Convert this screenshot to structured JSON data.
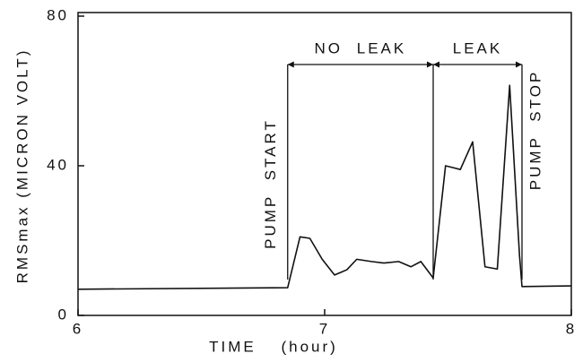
{
  "chart_data": {
    "type": "line",
    "xlabel": "TIME (hour)",
    "ylabel": "RMSmax (MICRON VOLT)",
    "x": [
      6,
      6.85,
      6.9,
      6.94,
      6.99,
      7.04,
      7.09,
      7.13,
      7.19,
      7.24,
      7.3,
      7.35,
      7.39,
      7.44,
      7.49,
      7.55,
      7.6,
      7.65,
      7.7,
      7.75,
      7.79,
      7.8,
      8
    ],
    "series": [
      {
        "color": "#111111",
        "values": [
          7,
          7.4,
          21,
          20.6,
          15,
          10.8,
          12.2,
          15,
          14.4,
          14,
          14.4,
          13,
          14.4,
          10,
          40,
          39,
          46.4,
          13,
          12.4,
          61.5,
          16,
          7.7,
          7.9
        ]
      }
    ],
    "xlim": [
      6,
      8
    ],
    "xticks": [
      6,
      7,
      8
    ],
    "ylim": [
      0,
      80
    ],
    "yticks": [
      0,
      40,
      80
    ],
    "events": [
      {
        "text": "PUMP START",
        "x": 6.85
      },
      {
        "text": "PUMP STOP",
        "x": 7.8
      }
    ],
    "spans": [
      {
        "text": "NO LEAK",
        "from": 6.85,
        "to": 7.44
      },
      {
        "text": "LEAK",
        "from": 7.44,
        "to": 7.8
      }
    ]
  }
}
